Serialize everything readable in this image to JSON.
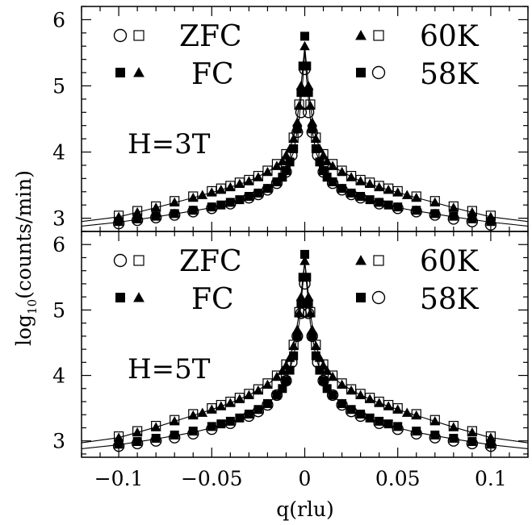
{
  "figure": {
    "xlabel": "q(rlu)",
    "ylabel": "log10(counts/min)",
    "ylabel_base": "log",
    "ylabel_sub": "10",
    "ylabel_rest": "(counts/min)"
  },
  "legend": {
    "zfc": "ZFC",
    "fc": "FC",
    "t60": "60K",
    "t58": "58K"
  },
  "x_tick_labels": [
    "−0.1",
    "−0.05",
    "0",
    "0.05",
    "0.1"
  ],
  "y_tick_labels": [
    "3",
    "4",
    "5",
    "6"
  ],
  "chart_data": [
    {
      "type": "scatter",
      "panel": "top",
      "field_label": "H=3T",
      "xlim": [
        -0.12,
        0.12
      ],
      "ylim": [
        2.8,
        6.2
      ],
      "x_ticks": [
        -0.1,
        -0.05,
        0,
        0.05,
        0.1
      ],
      "y_ticks": [
        3,
        4,
        5,
        6
      ],
      "grid": false,
      "legend_entries": [
        {
          "text": "ZFC",
          "symbols": [
            "open-circle",
            "open-square"
          ],
          "position": "top-left"
        },
        {
          "text": "FC",
          "symbols": [
            "filled-square",
            "filled-triangle"
          ],
          "position": "top-left"
        },
        {
          "text": "60K",
          "symbols": [
            "filled-triangle",
            "open-square"
          ],
          "position": "top-right"
        },
        {
          "text": "58K",
          "symbols": [
            "filled-square",
            "open-circle"
          ],
          "position": "top-right"
        }
      ],
      "series": [
        {
          "symbol": "filled-triangle",
          "x": [
            -0.1,
            -0.09,
            -0.08,
            -0.07,
            -0.06,
            -0.055,
            -0.05,
            -0.045,
            -0.04,
            -0.035,
            -0.03,
            -0.025,
            -0.02,
            -0.015,
            -0.012,
            -0.01,
            -0.008,
            -0.006,
            -0.004,
            -0.003,
            -0.002,
            0,
            0.002,
            0.003,
            0.004,
            0.006,
            0.008,
            0.01,
            0.012,
            0.015,
            0.02,
            0.025,
            0.03,
            0.035,
            0.04,
            0.045,
            0.05,
            0.055,
            0.06,
            0.07,
            0.08,
            0.09,
            0.1
          ],
          "y": [
            3.02,
            3.09,
            3.16,
            3.24,
            3.31,
            3.35,
            3.39,
            3.43,
            3.47,
            3.52,
            3.56,
            3.62,
            3.7,
            3.79,
            3.86,
            3.95,
            4.05,
            4.2,
            4.45,
            4.7,
            5.0,
            5.6,
            5.0,
            4.7,
            4.45,
            4.2,
            4.05,
            3.95,
            3.86,
            3.79,
            3.7,
            3.62,
            3.56,
            3.52,
            3.47,
            3.43,
            3.39,
            3.35,
            3.31,
            3.24,
            3.16,
            3.09,
            3.02
          ]
        },
        {
          "symbol": "open-square",
          "x": [
            -0.1,
            -0.09,
            -0.08,
            -0.07,
            -0.06,
            -0.05,
            -0.045,
            -0.04,
            -0.035,
            -0.03,
            -0.025,
            -0.02,
            -0.015,
            -0.01,
            -0.006,
            -0.003,
            0.003,
            0.006,
            0.01,
            0.015,
            0.02,
            0.025,
            0.03,
            0.035,
            0.04,
            0.045,
            0.05,
            0.06,
            0.07,
            0.08,
            0.09,
            0.1
          ],
          "y": [
            3.04,
            3.11,
            3.18,
            3.26,
            3.33,
            3.41,
            3.45,
            3.49,
            3.54,
            3.58,
            3.64,
            3.72,
            3.82,
            3.97,
            4.22,
            4.72,
            4.72,
            4.22,
            3.97,
            3.82,
            3.72,
            3.64,
            3.58,
            3.54,
            3.49,
            3.45,
            3.41,
            3.33,
            3.26,
            3.18,
            3.11,
            3.04
          ]
        },
        {
          "symbol": "filled-square",
          "x": [
            -0.1,
            -0.09,
            -0.08,
            -0.07,
            -0.06,
            -0.05,
            -0.045,
            -0.04,
            -0.035,
            -0.03,
            -0.025,
            -0.02,
            -0.015,
            -0.012,
            -0.01,
            -0.008,
            -0.006,
            -0.004,
            -0.002,
            -0.001,
            0,
            0.001,
            0.002,
            0.004,
            0.006,
            0.008,
            0.01,
            0.012,
            0.015,
            0.02,
            0.025,
            0.03,
            0.035,
            0.04,
            0.045,
            0.05,
            0.06,
            0.07,
            0.08,
            0.09,
            0.1
          ],
          "y": [
            2.95,
            2.99,
            3.03,
            3.07,
            3.12,
            3.17,
            3.2,
            3.24,
            3.28,
            3.33,
            3.38,
            3.45,
            3.55,
            3.62,
            3.72,
            3.85,
            4.05,
            4.35,
            4.9,
            5.3,
            5.75,
            5.3,
            4.9,
            4.35,
            4.05,
            3.85,
            3.72,
            3.62,
            3.55,
            3.45,
            3.38,
            3.33,
            3.28,
            3.24,
            3.2,
            3.17,
            3.12,
            3.07,
            3.03,
            2.99,
            2.95
          ]
        },
        {
          "symbol": "open-circle",
          "x": [
            -0.1,
            -0.09,
            -0.08,
            -0.07,
            -0.06,
            -0.05,
            -0.04,
            -0.03,
            -0.025,
            -0.02,
            -0.015,
            -0.01,
            -0.007,
            -0.004,
            -0.002,
            0,
            0.002,
            0.004,
            0.007,
            0.01,
            0.015,
            0.02,
            0.025,
            0.03,
            0.04,
            0.05,
            0.06,
            0.07,
            0.08,
            0.09,
            0.1
          ],
          "y": [
            2.92,
            2.97,
            3.01,
            3.05,
            3.1,
            3.15,
            3.22,
            3.31,
            3.36,
            3.43,
            3.53,
            3.7,
            3.95,
            4.3,
            4.6,
            5.25,
            4.6,
            4.3,
            3.95,
            3.7,
            3.53,
            3.43,
            3.36,
            3.31,
            3.22,
            3.15,
            3.1,
            3.05,
            2.99,
            2.95,
            2.9
          ]
        }
      ],
      "fit_curves": [
        {
          "x": [
            -0.12,
            -0.1,
            -0.08,
            -0.06,
            -0.05,
            -0.04,
            -0.03,
            -0.02,
            -0.015,
            -0.01,
            -0.006,
            -0.003,
            -0.001,
            0,
            0.001,
            0.003,
            0.006,
            0.01,
            0.015,
            0.02,
            0.03,
            0.04,
            0.05,
            0.06,
            0.08,
            0.1,
            0.12
          ],
          "y": [
            2.95,
            3.02,
            3.16,
            3.31,
            3.39,
            3.47,
            3.56,
            3.7,
            3.79,
            3.95,
            4.2,
            4.7,
            5.3,
            5.6,
            5.3,
            4.7,
            4.2,
            3.95,
            3.79,
            3.7,
            3.56,
            3.47,
            3.39,
            3.31,
            3.16,
            3.02,
            2.95
          ]
        },
        {
          "x": [
            -0.12,
            -0.1,
            -0.08,
            -0.06,
            -0.05,
            -0.04,
            -0.03,
            -0.02,
            -0.015,
            -0.01,
            -0.006,
            -0.003,
            -0.001,
            0,
            0.001,
            0.003,
            0.006,
            0.01,
            0.015,
            0.02,
            0.03,
            0.04,
            0.05,
            0.06,
            0.08,
            0.1,
            0.12
          ],
          "y": [
            2.88,
            2.94,
            3.02,
            3.11,
            3.16,
            3.23,
            3.32,
            3.44,
            3.54,
            3.71,
            4.0,
            4.5,
            5.1,
            5.55,
            5.1,
            4.5,
            4.0,
            3.71,
            3.54,
            3.44,
            3.32,
            3.23,
            3.16,
            3.11,
            3.02,
            2.94,
            2.88
          ]
        }
      ]
    },
    {
      "type": "scatter",
      "panel": "bottom",
      "field_label": "H=5T",
      "xlim": [
        -0.12,
        0.12
      ],
      "ylim": [
        2.75,
        6.2
      ],
      "x_ticks": [
        -0.1,
        -0.05,
        0,
        0.05,
        0.1
      ],
      "y_ticks": [
        3,
        4,
        5,
        6
      ],
      "grid": false,
      "legend_entries": [
        {
          "text": "ZFC",
          "symbols": [
            "open-circle",
            "open-square"
          ],
          "position": "top-left"
        },
        {
          "text": "FC",
          "symbols": [
            "filled-square",
            "filled-triangle"
          ],
          "position": "top-left"
        },
        {
          "text": "60K",
          "symbols": [
            "filled-triangle",
            "open-square"
          ],
          "position": "top-right"
        },
        {
          "text": "58K",
          "symbols": [
            "filled-square",
            "open-circle"
          ],
          "position": "top-right"
        }
      ],
      "series": [
        {
          "symbol": "filled-triangle",
          "x": [
            -0.1,
            -0.09,
            -0.08,
            -0.07,
            -0.06,
            -0.055,
            -0.05,
            -0.045,
            -0.04,
            -0.035,
            -0.03,
            -0.025,
            -0.02,
            -0.015,
            -0.012,
            -0.01,
            -0.008,
            -0.006,
            -0.004,
            -0.003,
            -0.002,
            0,
            0.002,
            0.003,
            0.004,
            0.006,
            0.008,
            0.01,
            0.012,
            0.015,
            0.02,
            0.025,
            0.03,
            0.035,
            0.04,
            0.045,
            0.05,
            0.055,
            0.06,
            0.07,
            0.08,
            0.09,
            0.1
          ],
          "y": [
            3.05,
            3.13,
            3.21,
            3.3,
            3.39,
            3.43,
            3.48,
            3.53,
            3.58,
            3.64,
            3.7,
            3.77,
            3.86,
            3.98,
            4.07,
            4.15,
            4.27,
            4.45,
            4.7,
            4.95,
            5.2,
            5.75,
            5.2,
            4.95,
            4.7,
            4.45,
            4.27,
            4.15,
            4.07,
            3.98,
            3.86,
            3.77,
            3.7,
            3.64,
            3.58,
            3.53,
            3.48,
            3.43,
            3.39,
            3.3,
            3.21,
            3.13,
            3.05
          ]
        },
        {
          "symbol": "open-square",
          "x": [
            -0.1,
            -0.09,
            -0.08,
            -0.07,
            -0.06,
            -0.05,
            -0.045,
            -0.04,
            -0.035,
            -0.03,
            -0.025,
            -0.02,
            -0.015,
            -0.01,
            -0.006,
            -0.003,
            0.003,
            0.006,
            0.01,
            0.015,
            0.02,
            0.025,
            0.03,
            0.035,
            0.04,
            0.045,
            0.05,
            0.06,
            0.07,
            0.08,
            0.09,
            0.1
          ],
          "y": [
            3.07,
            3.15,
            3.23,
            3.32,
            3.41,
            3.5,
            3.55,
            3.6,
            3.66,
            3.72,
            3.79,
            3.88,
            4.0,
            4.17,
            4.47,
            4.97,
            4.97,
            4.47,
            4.17,
            4.0,
            3.88,
            3.79,
            3.72,
            3.66,
            3.6,
            3.55,
            3.5,
            3.41,
            3.32,
            3.23,
            3.15,
            3.07
          ]
        },
        {
          "symbol": "filled-square",
          "x": [
            -0.1,
            -0.09,
            -0.08,
            -0.07,
            -0.06,
            -0.05,
            -0.045,
            -0.04,
            -0.035,
            -0.03,
            -0.025,
            -0.02,
            -0.015,
            -0.012,
            -0.01,
            -0.008,
            -0.006,
            -0.004,
            -0.002,
            -0.001,
            0,
            0.001,
            0.002,
            0.004,
            0.006,
            0.008,
            0.01,
            0.012,
            0.015,
            0.02,
            0.025,
            0.03,
            0.035,
            0.04,
            0.045,
            0.05,
            0.06,
            0.07,
            0.08,
            0.09,
            0.1
          ],
          "y": [
            2.95,
            2.99,
            3.04,
            3.09,
            3.15,
            3.22,
            3.26,
            3.3,
            3.35,
            3.41,
            3.48,
            3.57,
            3.7,
            3.8,
            3.92,
            4.08,
            4.3,
            4.6,
            5.1,
            5.5,
            5.85,
            5.5,
            5.1,
            4.6,
            4.3,
            4.08,
            3.92,
            3.8,
            3.7,
            3.57,
            3.48,
            3.41,
            3.35,
            3.3,
            3.26,
            3.22,
            3.15,
            3.09,
            3.04,
            2.99,
            2.95
          ]
        },
        {
          "symbol": "open-circle",
          "x": [
            -0.1,
            -0.09,
            -0.08,
            -0.07,
            -0.06,
            -0.05,
            -0.04,
            -0.03,
            -0.025,
            -0.02,
            -0.015,
            -0.01,
            -0.007,
            -0.004,
            -0.002,
            0,
            0.002,
            0.004,
            0.007,
            0.01,
            0.015,
            0.02,
            0.025,
            0.03,
            0.04,
            0.05,
            0.06,
            0.07,
            0.08,
            0.09,
            0.1
          ],
          "y": [
            2.92,
            2.96,
            3.0,
            3.05,
            3.11,
            3.18,
            3.27,
            3.38,
            3.45,
            3.55,
            3.7,
            3.92,
            4.2,
            4.6,
            4.95,
            5.4,
            4.95,
            4.6,
            4.2,
            3.92,
            3.7,
            3.55,
            3.45,
            3.38,
            3.27,
            3.18,
            3.11,
            3.05,
            3.0,
            2.96,
            2.92
          ]
        }
      ],
      "fit_curves": [
        {
          "x": [
            -0.12,
            -0.1,
            -0.08,
            -0.06,
            -0.05,
            -0.04,
            -0.03,
            -0.02,
            -0.015,
            -0.01,
            -0.006,
            -0.003,
            -0.001,
            0,
            0.001,
            0.003,
            0.006,
            0.01,
            0.015,
            0.02,
            0.03,
            0.04,
            0.05,
            0.06,
            0.08,
            0.1,
            0.12
          ],
          "y": [
            2.97,
            3.05,
            3.21,
            3.39,
            3.48,
            3.58,
            3.7,
            3.86,
            3.98,
            4.15,
            4.45,
            4.95,
            5.5,
            5.75,
            5.5,
            4.95,
            4.45,
            4.15,
            3.98,
            3.86,
            3.7,
            3.58,
            3.48,
            3.39,
            3.21,
            3.05,
            2.97
          ]
        },
        {
          "x": [
            -0.12,
            -0.1,
            -0.08,
            -0.06,
            -0.05,
            -0.04,
            -0.03,
            -0.02,
            -0.015,
            -0.01,
            -0.006,
            -0.003,
            -0.001,
            0,
            0.001,
            0.003,
            0.006,
            0.01,
            0.015,
            0.02,
            0.03,
            0.04,
            0.05,
            0.06,
            0.08,
            0.1,
            0.12
          ],
          "y": [
            2.88,
            2.94,
            3.03,
            3.13,
            3.2,
            3.28,
            3.39,
            3.56,
            3.7,
            3.92,
            4.28,
            4.8,
            5.4,
            5.75,
            5.4,
            4.8,
            4.28,
            3.92,
            3.7,
            3.56,
            3.39,
            3.28,
            3.2,
            3.13,
            3.03,
            2.94,
            2.88
          ]
        }
      ]
    }
  ]
}
